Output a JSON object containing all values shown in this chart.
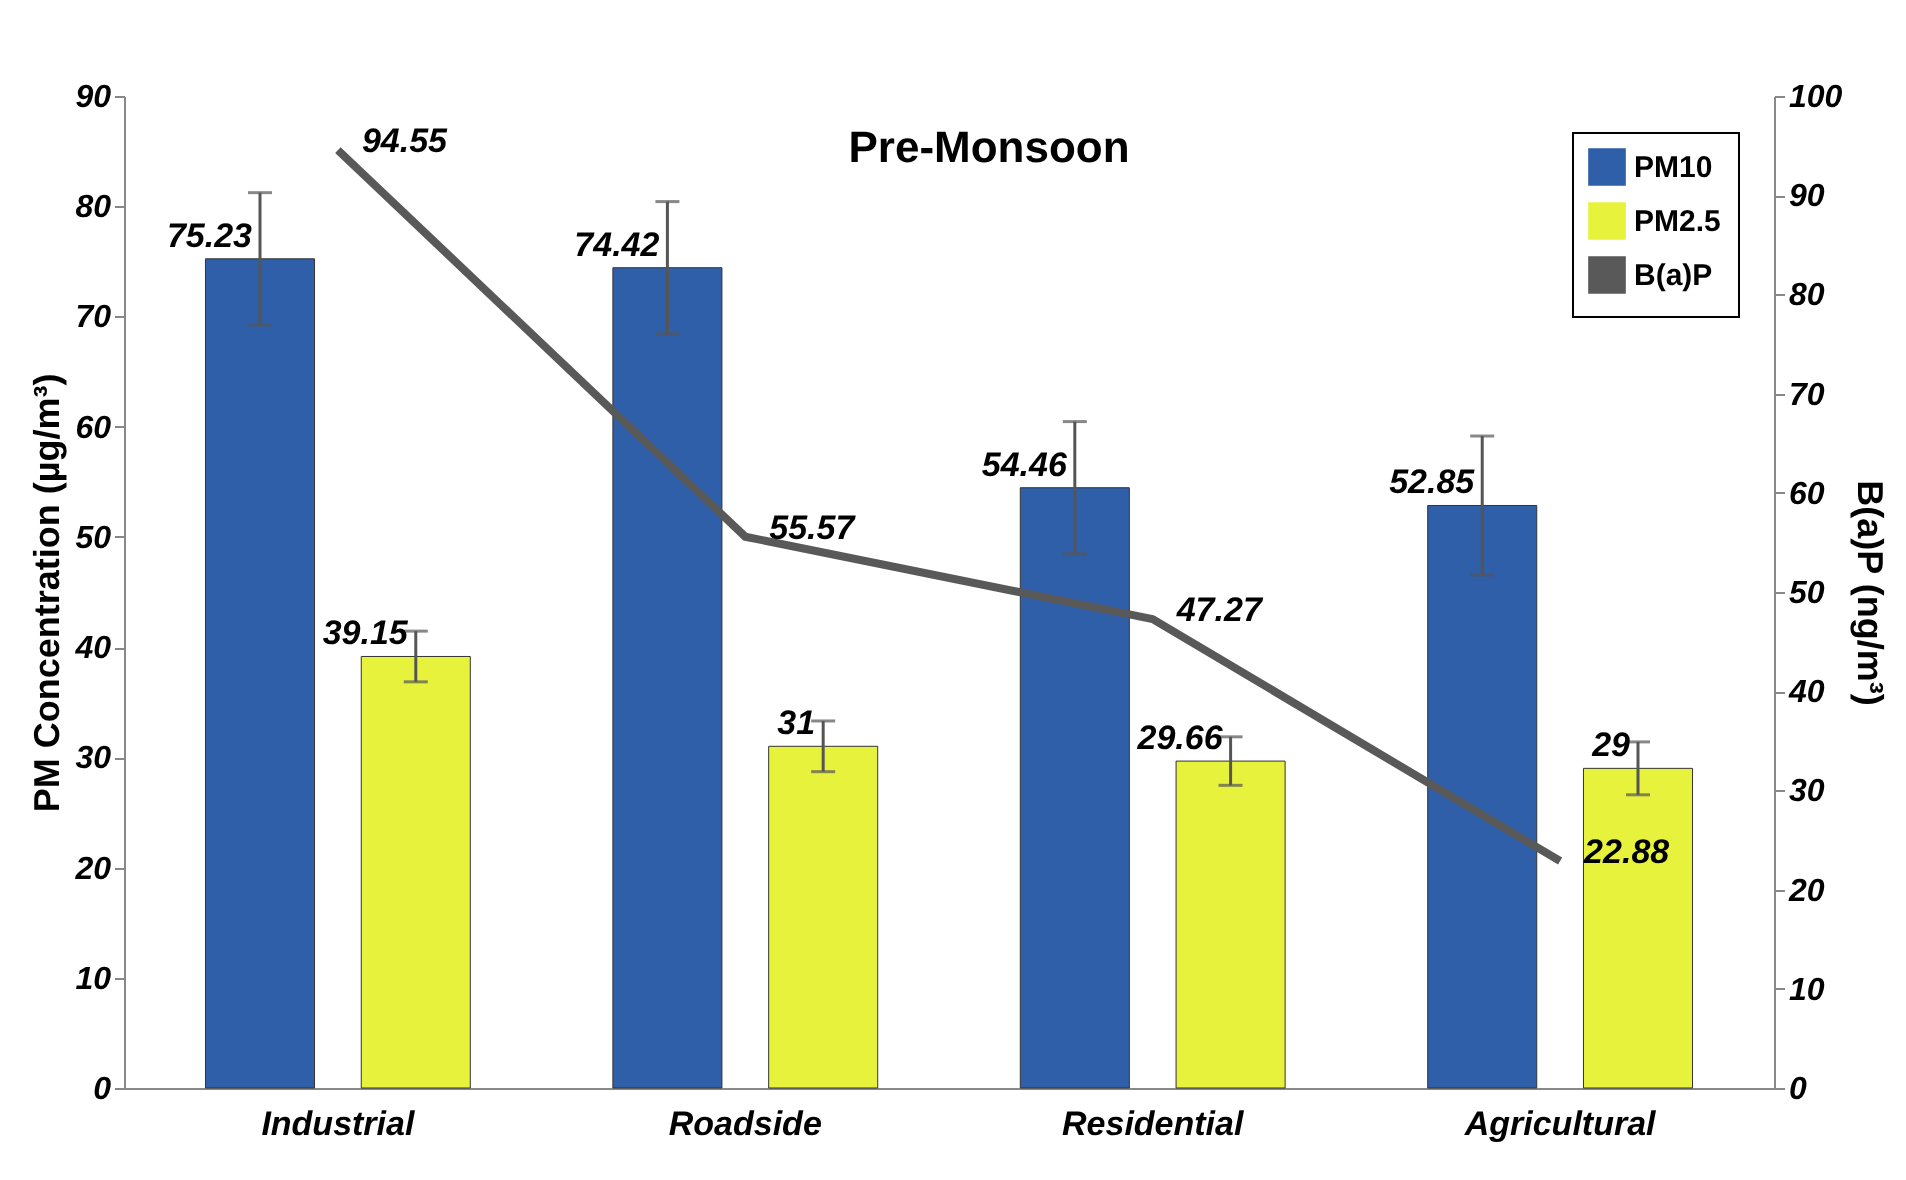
{
  "chart_data": {
    "type": "bar",
    "title": "Pre-Monsoon",
    "categories": [
      "Industrial",
      "Roadside",
      "Residential",
      "Agricultural"
    ],
    "series": [
      {
        "name": "PM10",
        "color": "#2e5fa8",
        "values": [
          75.23,
          74.42,
          54.46,
          52.85
        ],
        "errors": [
          6,
          6,
          6,
          6.3
        ]
      },
      {
        "name": "PM2.5",
        "color": "#e6f23c",
        "values": [
          39.15,
          31,
          29.66,
          29
        ],
        "errors": [
          2.3,
          2.3,
          2.2,
          2.4
        ]
      },
      {
        "name": "B(a)P",
        "type": "line",
        "axis": "y2",
        "color": "#595959",
        "values": [
          94.55,
          55.57,
          47.27,
          22.88
        ]
      }
    ],
    "ylabel": "PM Concentration (µg/m³)",
    "y2label": "B(a)P (ng/m³)",
    "ylim": [
      0,
      90
    ],
    "yticks": [
      0,
      10,
      20,
      30,
      40,
      50,
      60,
      70,
      80,
      90
    ],
    "y2lim": [
      0,
      100
    ],
    "y2ticks": [
      0,
      10,
      20,
      30,
      40,
      50,
      60,
      70,
      80,
      90,
      100
    ],
    "data_labels": true,
    "legend": "top right",
    "grid": false,
    "marker": "none",
    "line_style": "solid"
  }
}
